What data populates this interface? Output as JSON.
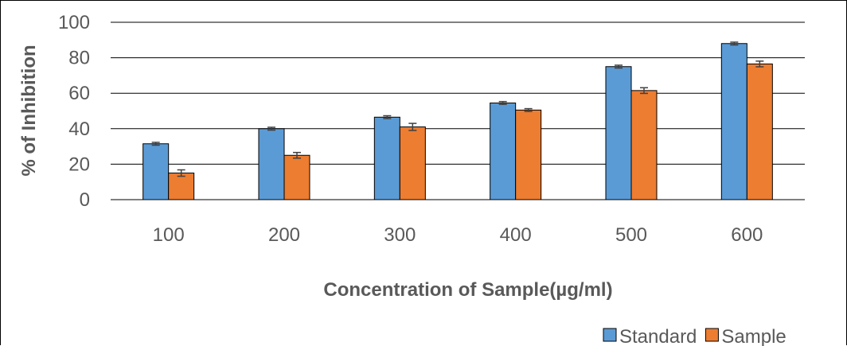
{
  "chart_data": {
    "type": "bar",
    "title": "",
    "xlabel": "Concentration of Sample(µg/ml)",
    "ylabel": "% of Inhibition",
    "categories": [
      "100",
      "200",
      "300",
      "400",
      "500",
      "600"
    ],
    "yticks": [
      "0",
      "20",
      "40",
      "60",
      "80",
      "100"
    ],
    "ylim": [
      0,
      100
    ],
    "grid": true,
    "legend": "bottom-right",
    "series": [
      {
        "name": "Standard",
        "color": "#5B9BD5",
        "values": [
          31.5,
          40,
          46.5,
          54.5,
          75,
          88
        ],
        "errors": [
          0.8,
          0.8,
          0.8,
          0.8,
          0.8,
          0.8
        ]
      },
      {
        "name": "Sample",
        "color": "#ED7D31",
        "values": [
          15,
          25,
          41,
          50.5,
          61.5,
          76.5
        ],
        "errors": [
          1.8,
          1.6,
          2,
          0.8,
          1.6,
          1.6
        ]
      }
    ]
  }
}
